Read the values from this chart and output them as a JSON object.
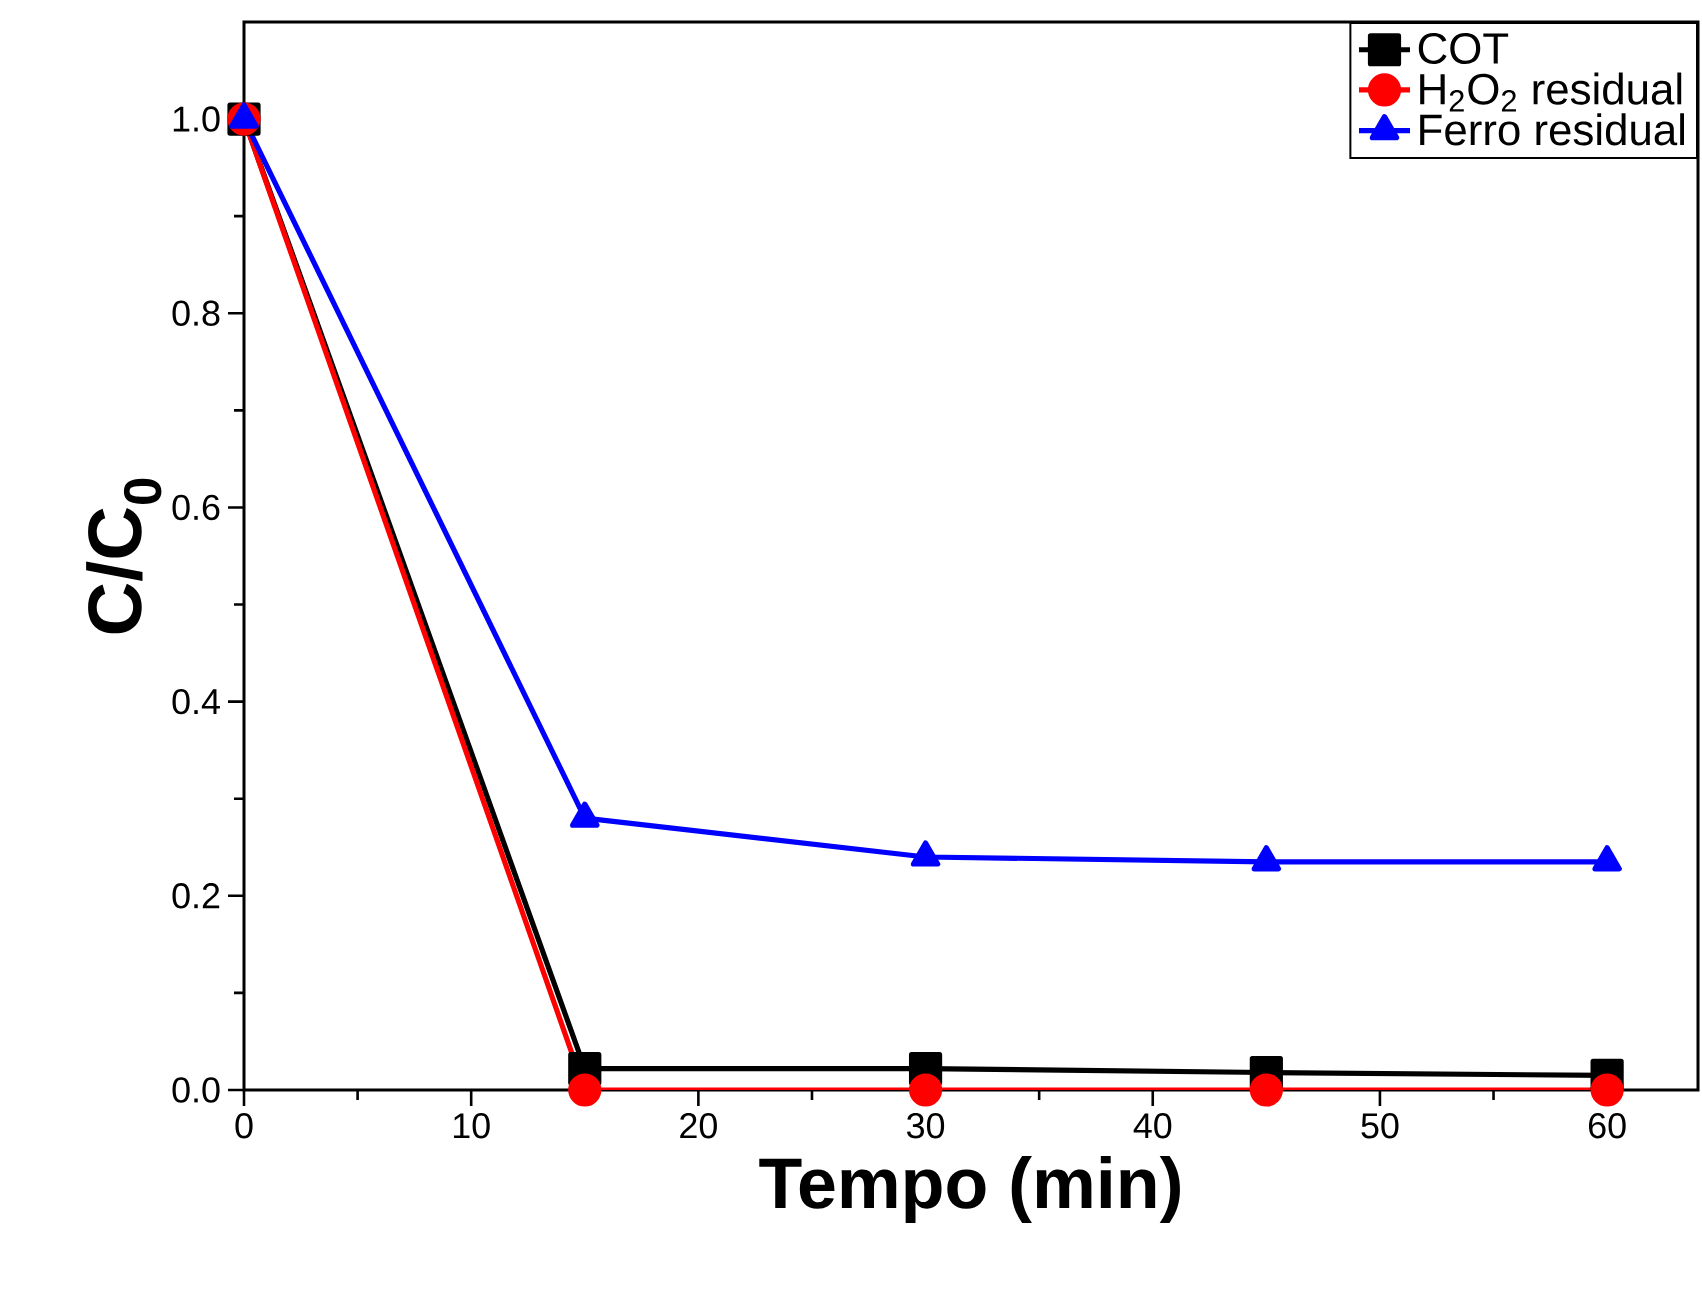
{
  "chart_data": {
    "type": "line",
    "xlabel": "Tempo (min)",
    "ylabel": "C/C$_{0}$",
    "x": [
      0,
      15,
      30,
      45,
      60
    ],
    "series": [
      {
        "name": "COT",
        "color": "#000000",
        "marker": "square",
        "values": [
          1.0,
          0.022,
          0.022,
          0.018,
          0.015
        ]
      },
      {
        "name": "H$_{2}$O$_{2}$ residual",
        "color": "#ff0000",
        "marker": "circle",
        "values": [
          1.0,
          0.0,
          0.0,
          0.0,
          0.0
        ]
      },
      {
        "name": "Ferro residual",
        "color": "#0000ff",
        "marker": "triangle",
        "values": [
          1.0,
          0.28,
          0.24,
          0.235,
          0.235
        ]
      }
    ],
    "xlim": [
      0,
      64
    ],
    "ylim": [
      0,
      1.1
    ],
    "xticks": [
      0,
      10,
      20,
      30,
      40,
      50,
      60
    ],
    "yticks": [
      {
        "value": 0,
        "label": "0.0"
      },
      {
        "value": 0.2,
        "label": "0.2"
      },
      {
        "value": 0.4,
        "label": "0.4"
      },
      {
        "value": 0.6,
        "label": "0.6"
      },
      {
        "value": 0.8,
        "label": "0.8"
      },
      {
        "value": 1.0,
        "label": "1.0"
      }
    ],
    "legend": "top right",
    "grid": false,
    "line_style": "solid"
  }
}
